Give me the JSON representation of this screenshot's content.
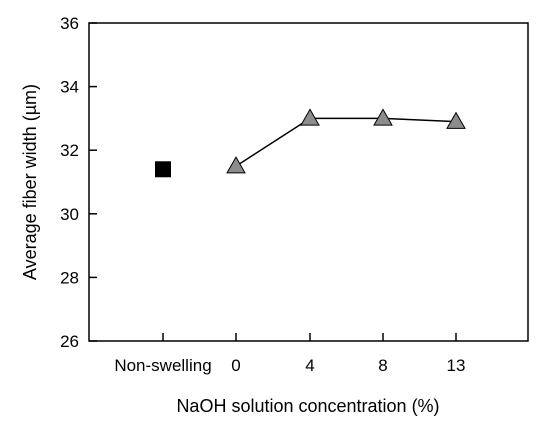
{
  "chart_data": {
    "type": "scatter",
    "xlabel": "NaOH solution concentration (%)",
    "ylabel": "Average fiber width (µm)",
    "ylim": [
      26,
      36
    ],
    "yticks": [
      26,
      28,
      30,
      32,
      34,
      36
    ],
    "categories": [
      "Non-swelling",
      "0",
      "4",
      "8",
      "13"
    ],
    "grid": false,
    "series": [
      {
        "marker": "square",
        "color": "#000000",
        "connected": false,
        "points": [
          {
            "x": "Non-swelling",
            "y": 31.4
          }
        ]
      },
      {
        "marker": "triangle",
        "color": "#8c8c8c",
        "connected": true,
        "points": [
          {
            "x": "0",
            "y": 31.5
          },
          {
            "x": "4",
            "y": 33.0
          },
          {
            "x": "8",
            "y": 33.0
          },
          {
            "x": "13",
            "y": 32.9
          }
        ]
      }
    ]
  }
}
